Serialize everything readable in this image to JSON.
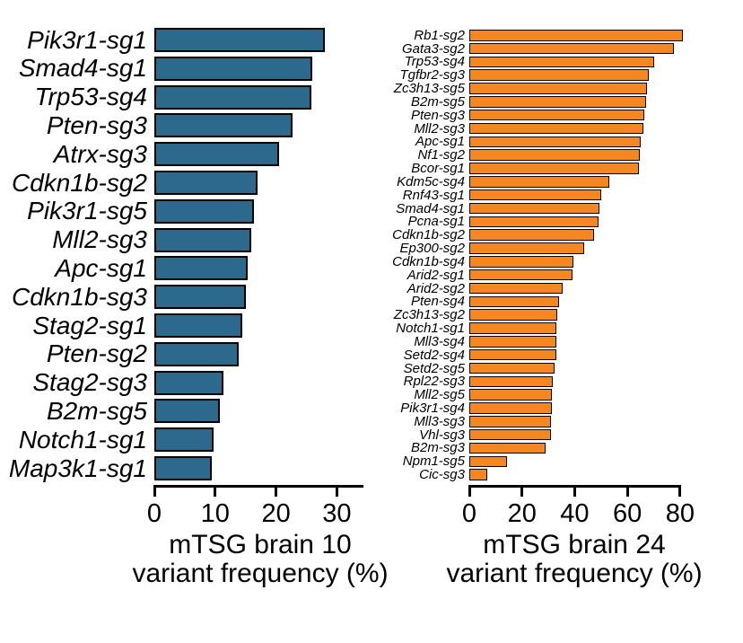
{
  "figure": {
    "background_color": "#ffffff",
    "text_color": "#000000"
  },
  "chart_data": [
    {
      "type": "bar",
      "orientation": "horizontal",
      "panel": "left",
      "title_lines": [
        "mTSG brain 10",
        "variant frequency (%)"
      ],
      "xlabel": "mTSG brain 10 variant frequency (%)",
      "ylabel": "",
      "bar_color": "#2D698C",
      "bar_border_color": "#000000",
      "grid": false,
      "legend": false,
      "xlim": [
        0,
        35
      ],
      "xticks": [
        0,
        10,
        20,
        30
      ],
      "categories": [
        "Pik3r1-sg1",
        "Smad4-sg1",
        "Trp53-sg4",
        "Pten-sg3",
        "Atrx-sg3",
        "Cdkn1b-sg2",
        "Pik3r1-sg5",
        "Mll2-sg3",
        "Apc-sg1",
        "Cdkn1b-sg3",
        "Stag2-sg1",
        "Pten-sg2",
        "Stag2-sg3",
        "B2m-sg5",
        "Notch1-sg1",
        "Map3k1-sg1"
      ],
      "values": [
        28,
        26,
        25.8,
        22.7,
        20.5,
        17,
        16.3,
        16,
        15.3,
        15,
        14.4,
        13.8,
        11.3,
        10.7,
        9.7,
        9.5
      ]
    },
    {
      "type": "bar",
      "orientation": "horizontal",
      "panel": "right",
      "title_lines": [
        "mTSG brain 24",
        "variant frequency (%)"
      ],
      "xlabel": "mTSG brain 24 variant frequency (%)",
      "ylabel": "",
      "bar_color": "#F58723",
      "bar_border_color": "#000000",
      "grid": false,
      "legend": false,
      "xlim": [
        0,
        80
      ],
      "xticks": [
        0,
        20,
        40,
        60,
        80
      ],
      "categories": [
        "Rb1-sg2",
        "Gata3-sg2",
        "Trp53-sg4",
        "Tgfbr2-sg3",
        "Zc3h13-sg5",
        "B2m-sg5",
        "Pten-sg3",
        "Mll2-sg3",
        "Apc-sg1",
        "Nf1-sg2",
        "Bcor-sg1",
        "Kdm5c-sg4",
        "Rnf43-sg1",
        "Smad4-sg1",
        "Pcna-sg1",
        "Cdkn1b-sg2",
        "Ep300-sg2",
        "Cdkn1b-sg4",
        "Arid2-sg1",
        "Arid2-sg2",
        "Pten-sg4",
        "Zc3h13-sg2",
        "Notch1-sg1",
        "Mll3-sg4",
        "Setd2-sg4",
        "Setd2-sg5",
        "Rpl22-sg3",
        "Mll2-sg5",
        "Pik3r1-sg4",
        "Mll3-sg3",
        "Vhl-sg3",
        "B2m-sg3",
        "Npm1-sg5",
        "Cic-sg3"
      ],
      "values": [
        81,
        77.5,
        70,
        68,
        67.5,
        67,
        66.5,
        66,
        65,
        64.7,
        64.5,
        53,
        50,
        49.5,
        49,
        47.5,
        43.5,
        39.5,
        39,
        35.5,
        34,
        33.5,
        33.2,
        33.2,
        33,
        32.5,
        31.8,
        31.5,
        31.2,
        31,
        31,
        29,
        14.3,
        6.8
      ]
    }
  ]
}
